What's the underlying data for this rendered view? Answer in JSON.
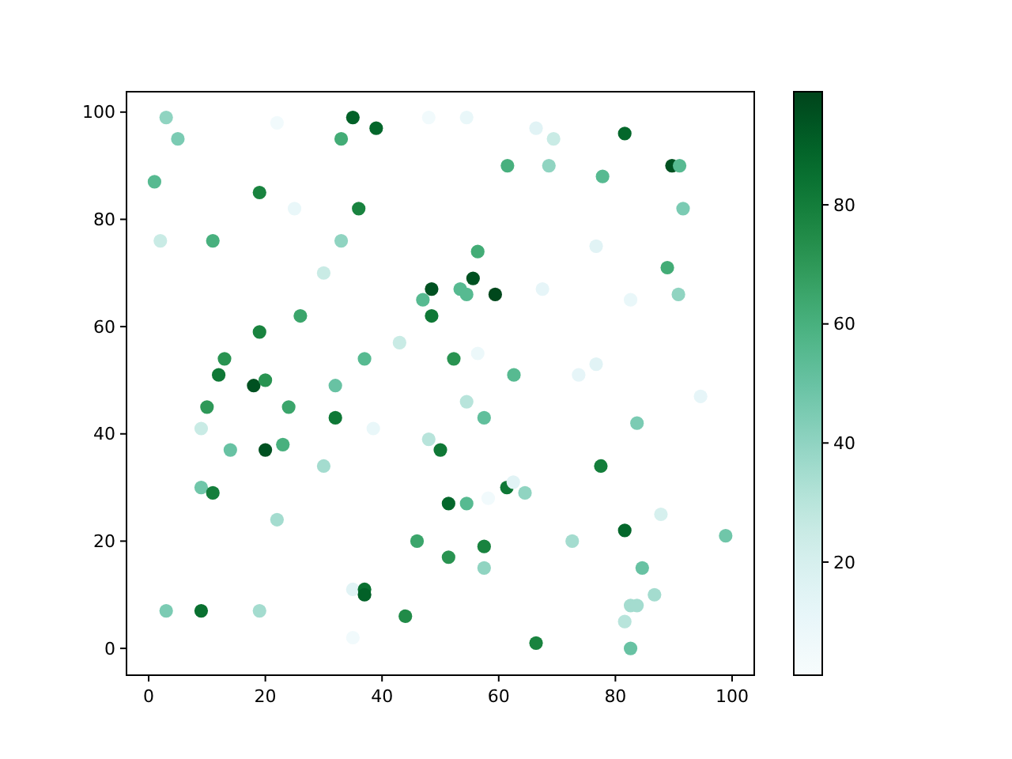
{
  "chart_data": {
    "type": "scatter",
    "marker": "circle",
    "grid": false,
    "xlim": [
      -3.8,
      103.8
    ],
    "ylim": [
      -5,
      103.8
    ],
    "xticks": [
      0,
      20,
      40,
      60,
      80,
      100
    ],
    "yticks": [
      0,
      20,
      40,
      60,
      80,
      100
    ],
    "clim": [
      1,
      99
    ],
    "cticks": [
      20,
      40,
      60,
      80
    ],
    "series": [
      {
        "x": [
          1,
          2,
          3,
          5,
          3,
          9,
          9,
          9,
          10,
          11,
          11,
          12,
          13,
          14,
          18,
          19,
          19,
          19,
          20,
          20,
          22,
          22,
          23,
          24,
          25,
          26,
          30,
          30,
          32,
          32,
          33,
          33,
          35,
          35,
          35,
          36,
          37,
          37,
          37,
          38.5,
          39,
          43,
          44,
          46,
          47,
          48,
          48.5,
          48.5,
          48,
          50,
          51.4,
          51.4,
          52.3,
          53.4,
          54.5,
          54.5,
          54.5,
          54.5,
          55.6,
          56.4,
          56.4,
          57.5,
          57.5,
          57.5,
          59.4,
          61.5,
          61.4,
          62.5,
          64.5,
          62.6,
          66.4,
          66.4,
          67.5,
          68.6,
          69.4,
          72.6,
          73.7,
          76.7,
          76.7,
          77.8,
          77.5,
          81.6,
          81.6,
          81.6,
          82.6,
          83.7,
          82.6,
          83.7,
          82.6,
          84.6,
          86.7,
          87.8,
          88.9,
          89.7,
          91,
          90.8,
          91.6,
          94.6,
          98.9,
          58.2
        ],
        "values": [
          87,
          76,
          99,
          95,
          7,
          7,
          41,
          30,
          45,
          29,
          76,
          51,
          54,
          37,
          49,
          85,
          59,
          7,
          50,
          37,
          98,
          24,
          38,
          45,
          82,
          62,
          70,
          34,
          49,
          43,
          95,
          76,
          99,
          2,
          11,
          82,
          54,
          11,
          10,
          41,
          97,
          57,
          6,
          20,
          65,
          99,
          67,
          62,
          39,
          37,
          27,
          17,
          54,
          67,
          66,
          99,
          46,
          27,
          69,
          74,
          55,
          43,
          19,
          15,
          66,
          90,
          30,
          31,
          29,
          51,
          97,
          1,
          67,
          90,
          95,
          20,
          51,
          53,
          75,
          88,
          34,
          96,
          22,
          5,
          8,
          8,
          65,
          42,
          0,
          15,
          10,
          25,
          71,
          90,
          90,
          66,
          82,
          47,
          21,
          28
        ],
        "cvalues": [
          55,
          25,
          40,
          45,
          45,
          85,
          25,
          48,
          70,
          80,
          60,
          82,
          72,
          50,
          95,
          78,
          78,
          35,
          72,
          95,
          5,
          35,
          60,
          65,
          10,
          65,
          25,
          35,
          50,
          82,
          62,
          40,
          90,
          5,
          15,
          78,
          55,
          85,
          90,
          10,
          88,
          25,
          75,
          65,
          55,
          5,
          95,
          82,
          30,
          82,
          88,
          72,
          72,
          55,
          55,
          10,
          30,
          55,
          95,
          62,
          8,
          52,
          78,
          40,
          98,
          60,
          82,
          15,
          40,
          55,
          15,
          78,
          12,
          40,
          25,
          35,
          12,
          15,
          15,
          55,
          80,
          88,
          88,
          30,
          35,
          35,
          10,
          45,
          50,
          50,
          35,
          20,
          62,
          95,
          55,
          40,
          45,
          12,
          48,
          5
        ]
      }
    ]
  }
}
